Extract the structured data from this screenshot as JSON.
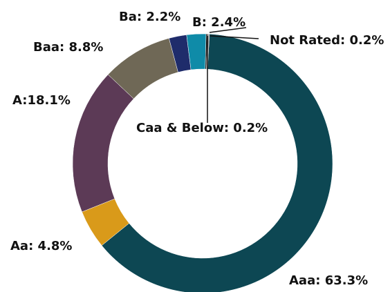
{
  "chart_data": {
    "type": "donut",
    "categories": [
      "Aaa",
      "Aa",
      "A",
      "Baa",
      "Ba",
      "B",
      "Caa & Below",
      "Not Rated"
    ],
    "values": [
      63.3,
      4.8,
      18.1,
      8.8,
      2.2,
      2.4,
      0.2,
      0.2
    ],
    "value_labels": [
      "Aaa: 63.3%",
      "Aa: 4.8%",
      "A:18.1%",
      "Baa: 8.8%",
      "Ba: 2.2%",
      "B: 2.4%",
      "Caa & Below: 0.2%",
      "Not Rated: 0.2%"
    ],
    "colors": [
      "#0d4753",
      "#d99a1a",
      "#5c3a56",
      "#6f6856",
      "#1f2c6b",
      "#0f8ba8",
      "#1a1a1a",
      "#9a9a9a"
    ]
  }
}
